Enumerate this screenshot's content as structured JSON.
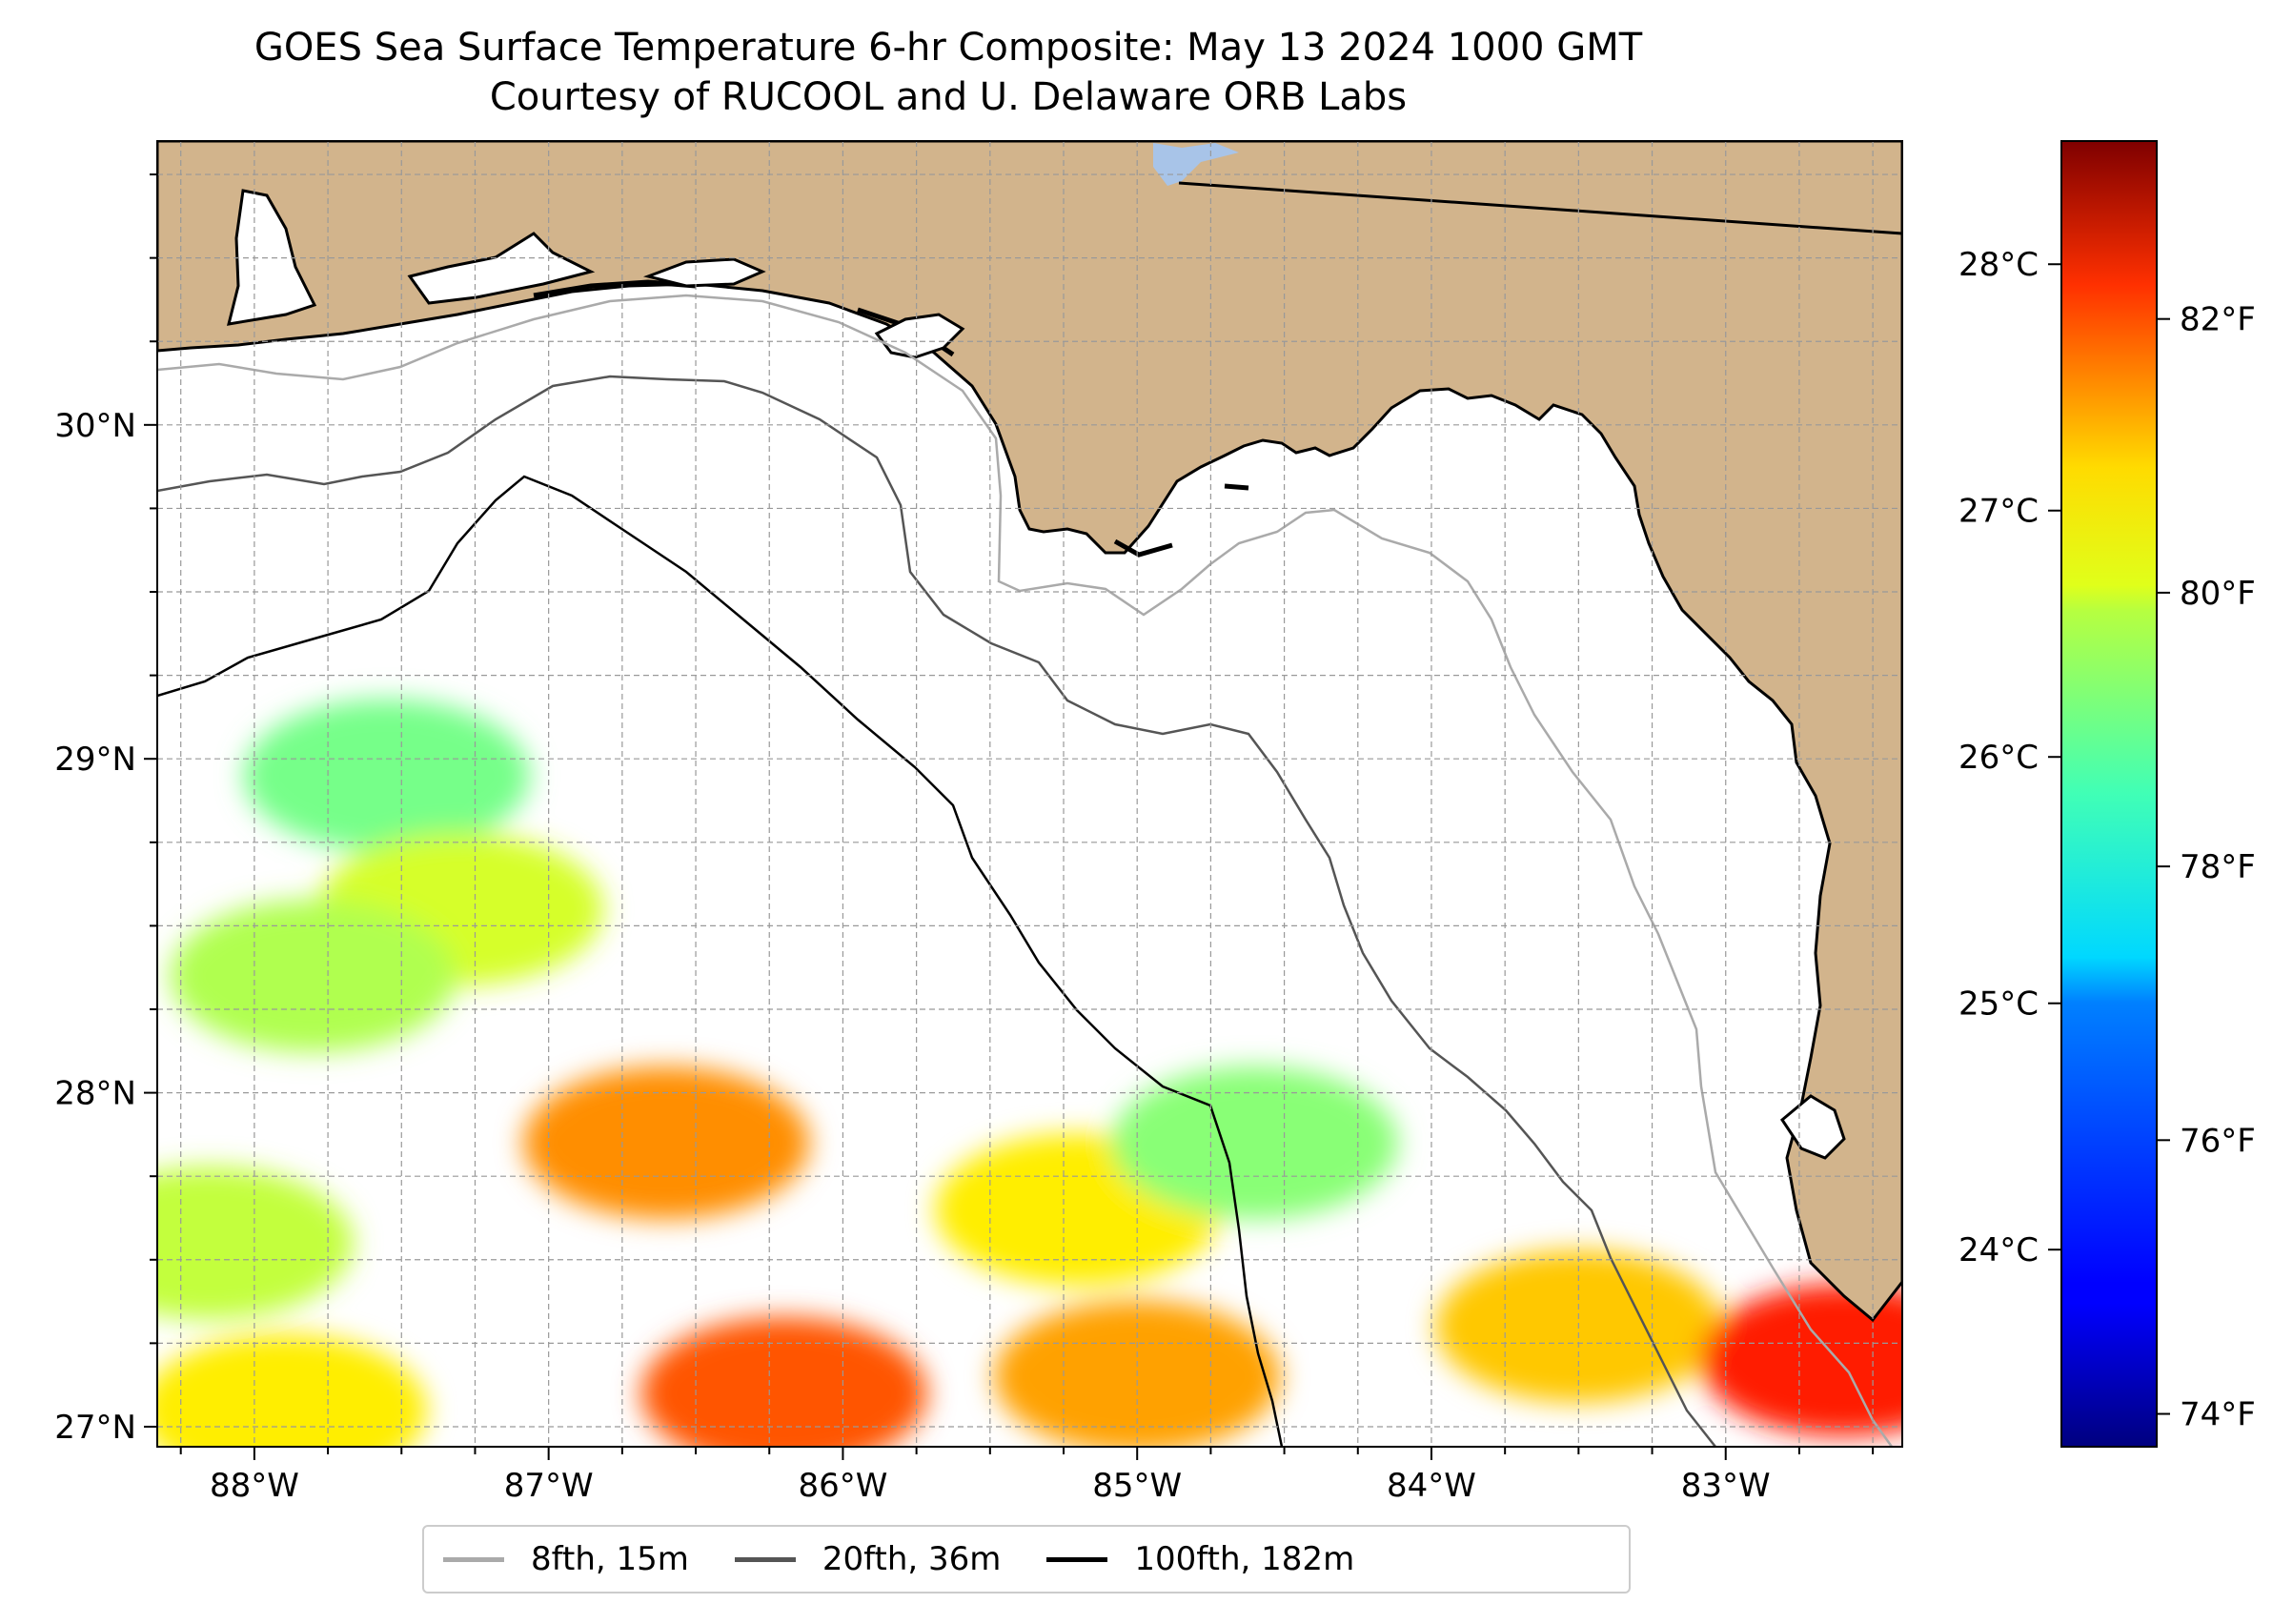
{
  "title_line1": "GOES Sea Surface Temperature 6-hr Composite: May 13 2024 1000 GMT",
  "title_line2": "Courtesy of RUCOOL and U. Delaware ORB Labs",
  "map": {
    "lon_range": [
      -88.33,
      -82.4
    ],
    "lat_range": [
      26.94,
      30.85
    ],
    "lon_ticks": [
      {
        "value": -88,
        "label": "88°W"
      },
      {
        "value": -87,
        "label": "87°W"
      },
      {
        "value": -86,
        "label": "86°W"
      },
      {
        "value": -85,
        "label": "85°W"
      },
      {
        "value": -84,
        "label": "84°W"
      },
      {
        "value": -83,
        "label": "83°W"
      }
    ],
    "lat_ticks": [
      {
        "value": 30,
        "label": "30°N"
      },
      {
        "value": 29,
        "label": "29°N"
      },
      {
        "value": 28,
        "label": "28°N"
      },
      {
        "value": 27,
        "label": "27°N"
      }
    ],
    "land_color": "#D2B48C",
    "water_color": "#ffffff",
    "grid": true
  },
  "colorbar": {
    "colormap": "jet",
    "celsius_range": [
      23.2,
      28.5
    ],
    "celsius_ticks": [
      {
        "value": 24,
        "label": "24°C"
      },
      {
        "value": 25,
        "label": "25°C"
      },
      {
        "value": 26,
        "label": "26°C"
      },
      {
        "value": 27,
        "label": "27°C"
      },
      {
        "value": 28,
        "label": "28°C"
      }
    ],
    "fahrenheit_ticks": [
      {
        "value": 74,
        "label": "74°F"
      },
      {
        "value": 76,
        "label": "76°F"
      },
      {
        "value": 78,
        "label": "78°F"
      },
      {
        "value": 80,
        "label": "80°F"
      },
      {
        "value": 82,
        "label": "82°F"
      }
    ]
  },
  "sst_patches": [
    {
      "lon": -87.55,
      "lat": 28.95,
      "temp_c": 25.8
    },
    {
      "lon": -87.3,
      "lat": 28.55,
      "temp_c": 26.3
    },
    {
      "lon": -87.8,
      "lat": 28.35,
      "temp_c": 26.1
    },
    {
      "lon": -86.6,
      "lat": 27.85,
      "temp_c": 27.1
    },
    {
      "lon": -85.2,
      "lat": 27.65,
      "temp_c": 26.6
    },
    {
      "lon": -84.6,
      "lat": 27.85,
      "temp_c": 25.9
    },
    {
      "lon": -86.2,
      "lat": 27.1,
      "temp_c": 27.4
    },
    {
      "lon": -85.0,
      "lat": 27.15,
      "temp_c": 27.0
    },
    {
      "lon": -83.5,
      "lat": 27.3,
      "temp_c": 26.8
    },
    {
      "lon": -82.6,
      "lat": 27.2,
      "temp_c": 27.7
    },
    {
      "lon": -88.15,
      "lat": 27.55,
      "temp_c": 26.2
    },
    {
      "lon": -87.9,
      "lat": 27.05,
      "temp_c": 26.6
    }
  ],
  "legend": [
    {
      "label": "8fth, 15m",
      "color": "#aaaaaa"
    },
    {
      "label": "20fth, 36m",
      "color": "#555555"
    },
    {
      "label": "100fth, 182m",
      "color": "#000000"
    }
  ]
}
